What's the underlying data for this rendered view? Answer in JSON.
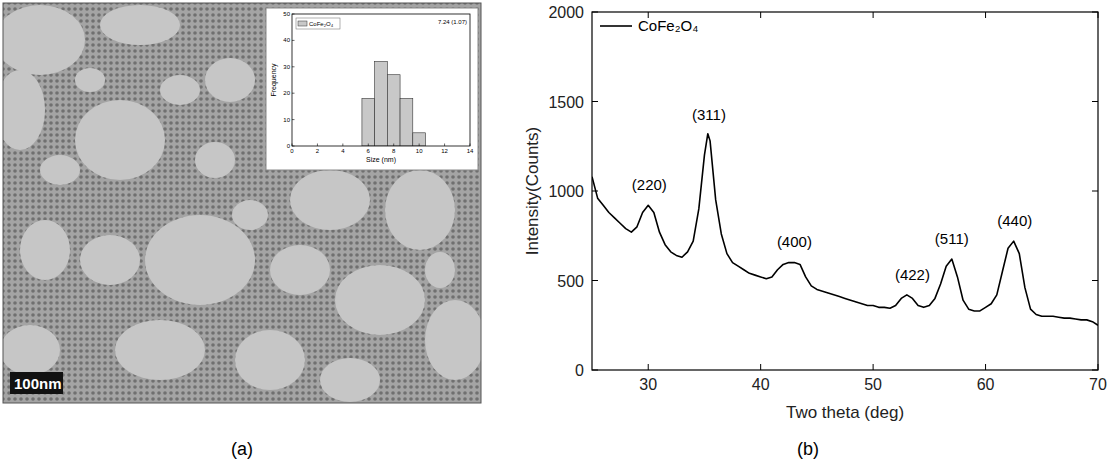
{
  "chart_data": [
    {
      "type": "histogram",
      "title": "(a)",
      "x_label": "Size (nm)",
      "y_label": "Frequency",
      "bins": [
        5.5,
        6.5,
        7.5,
        8.5,
        9.5,
        10.5
      ],
      "series": [
        {
          "name": "CoFe₂O₄",
          "color": "#c8c8c8",
          "values": [
            18,
            32,
            27,
            18,
            5
          ]
        }
      ],
      "xlim": [
        0,
        14
      ],
      "xticks": [
        0,
        2,
        4,
        6,
        8,
        10,
        12,
        14
      ],
      "ylim": [
        0,
        50
      ],
      "yticks": [
        0,
        10,
        20,
        30,
        40,
        50
      ],
      "legend": "upper left",
      "annotations": [
        {
          "text": "7.24 (1.07)"
        },
        {
          "text": "100nm"
        }
      ]
    },
    {
      "type": "line",
      "title": "(b)",
      "x_label": "Two theta (deg)",
      "y_label": "Intensity(Counts)",
      "x": [
        25,
        25.5,
        26,
        26.5,
        27,
        27.5,
        28,
        28.5,
        29,
        29.5,
        30,
        30.5,
        31,
        31.5,
        32,
        32.5,
        33,
        33.5,
        34,
        34.5,
        35,
        35.3,
        35.5,
        36,
        36.5,
        37,
        37.5,
        38,
        38.5,
        39,
        39.5,
        40,
        40.5,
        41,
        41.5,
        42,
        42.5,
        43,
        43.5,
        44,
        44.5,
        45,
        45.5,
        46,
        46.5,
        47,
        47.5,
        48,
        48.5,
        49,
        49.5,
        50,
        50.5,
        51,
        51.5,
        52,
        52.5,
        53,
        53.5,
        54,
        54.5,
        55,
        55.5,
        56,
        56.5,
        57,
        57.5,
        58,
        58.5,
        59,
        59.5,
        60,
        60.5,
        61,
        61.5,
        62,
        62.5,
        63,
        63.5,
        64,
        64.5,
        65,
        65.5,
        66,
        66.5,
        67,
        67.5,
        68,
        68.5,
        69,
        69.5,
        70
      ],
      "series": [
        {
          "name": "CoFe₂O₄",
          "color": "#000000",
          "values": [
            1080,
            960,
            920,
            880,
            850,
            820,
            790,
            770,
            800,
            880,
            920,
            880,
            770,
            700,
            660,
            640,
            630,
            660,
            720,
            900,
            1200,
            1320,
            1280,
            950,
            760,
            650,
            600,
            580,
            560,
            540,
            530,
            520,
            510,
            520,
            560,
            590,
            600,
            600,
            590,
            520,
            470,
            450,
            440,
            430,
            420,
            410,
            400,
            390,
            380,
            370,
            360,
            360,
            350,
            350,
            345,
            360,
            400,
            420,
            400,
            360,
            350,
            360,
            400,
            480,
            580,
            620,
            520,
            390,
            340,
            330,
            330,
            350,
            370,
            420,
            550,
            680,
            720,
            650,
            460,
            340,
            310,
            300,
            300,
            300,
            295,
            290,
            290,
            285,
            280,
            280,
            270,
            250
          ]
        }
      ],
      "xlim": [
        25,
        70
      ],
      "xticks": [
        30,
        40,
        50,
        60,
        70
      ],
      "ylim": [
        0,
        2000
      ],
      "yticks": [
        0,
        500,
        1000,
        1500,
        2000
      ],
      "legend": "upper left",
      "annotations": [
        {
          "text": "(220)",
          "x": 30.1,
          "y": 960
        },
        {
          "text": "(311)",
          "x": 35.4,
          "y": 1350
        },
        {
          "text": "(400)",
          "x": 43,
          "y": 640
        },
        {
          "text": "(422)",
          "x": 53.5,
          "y": 460
        },
        {
          "text": "(511)",
          "x": 57,
          "y": 660
        },
        {
          "text": "(440)",
          "x": 62.6,
          "y": 760
        }
      ]
    }
  ]
}
